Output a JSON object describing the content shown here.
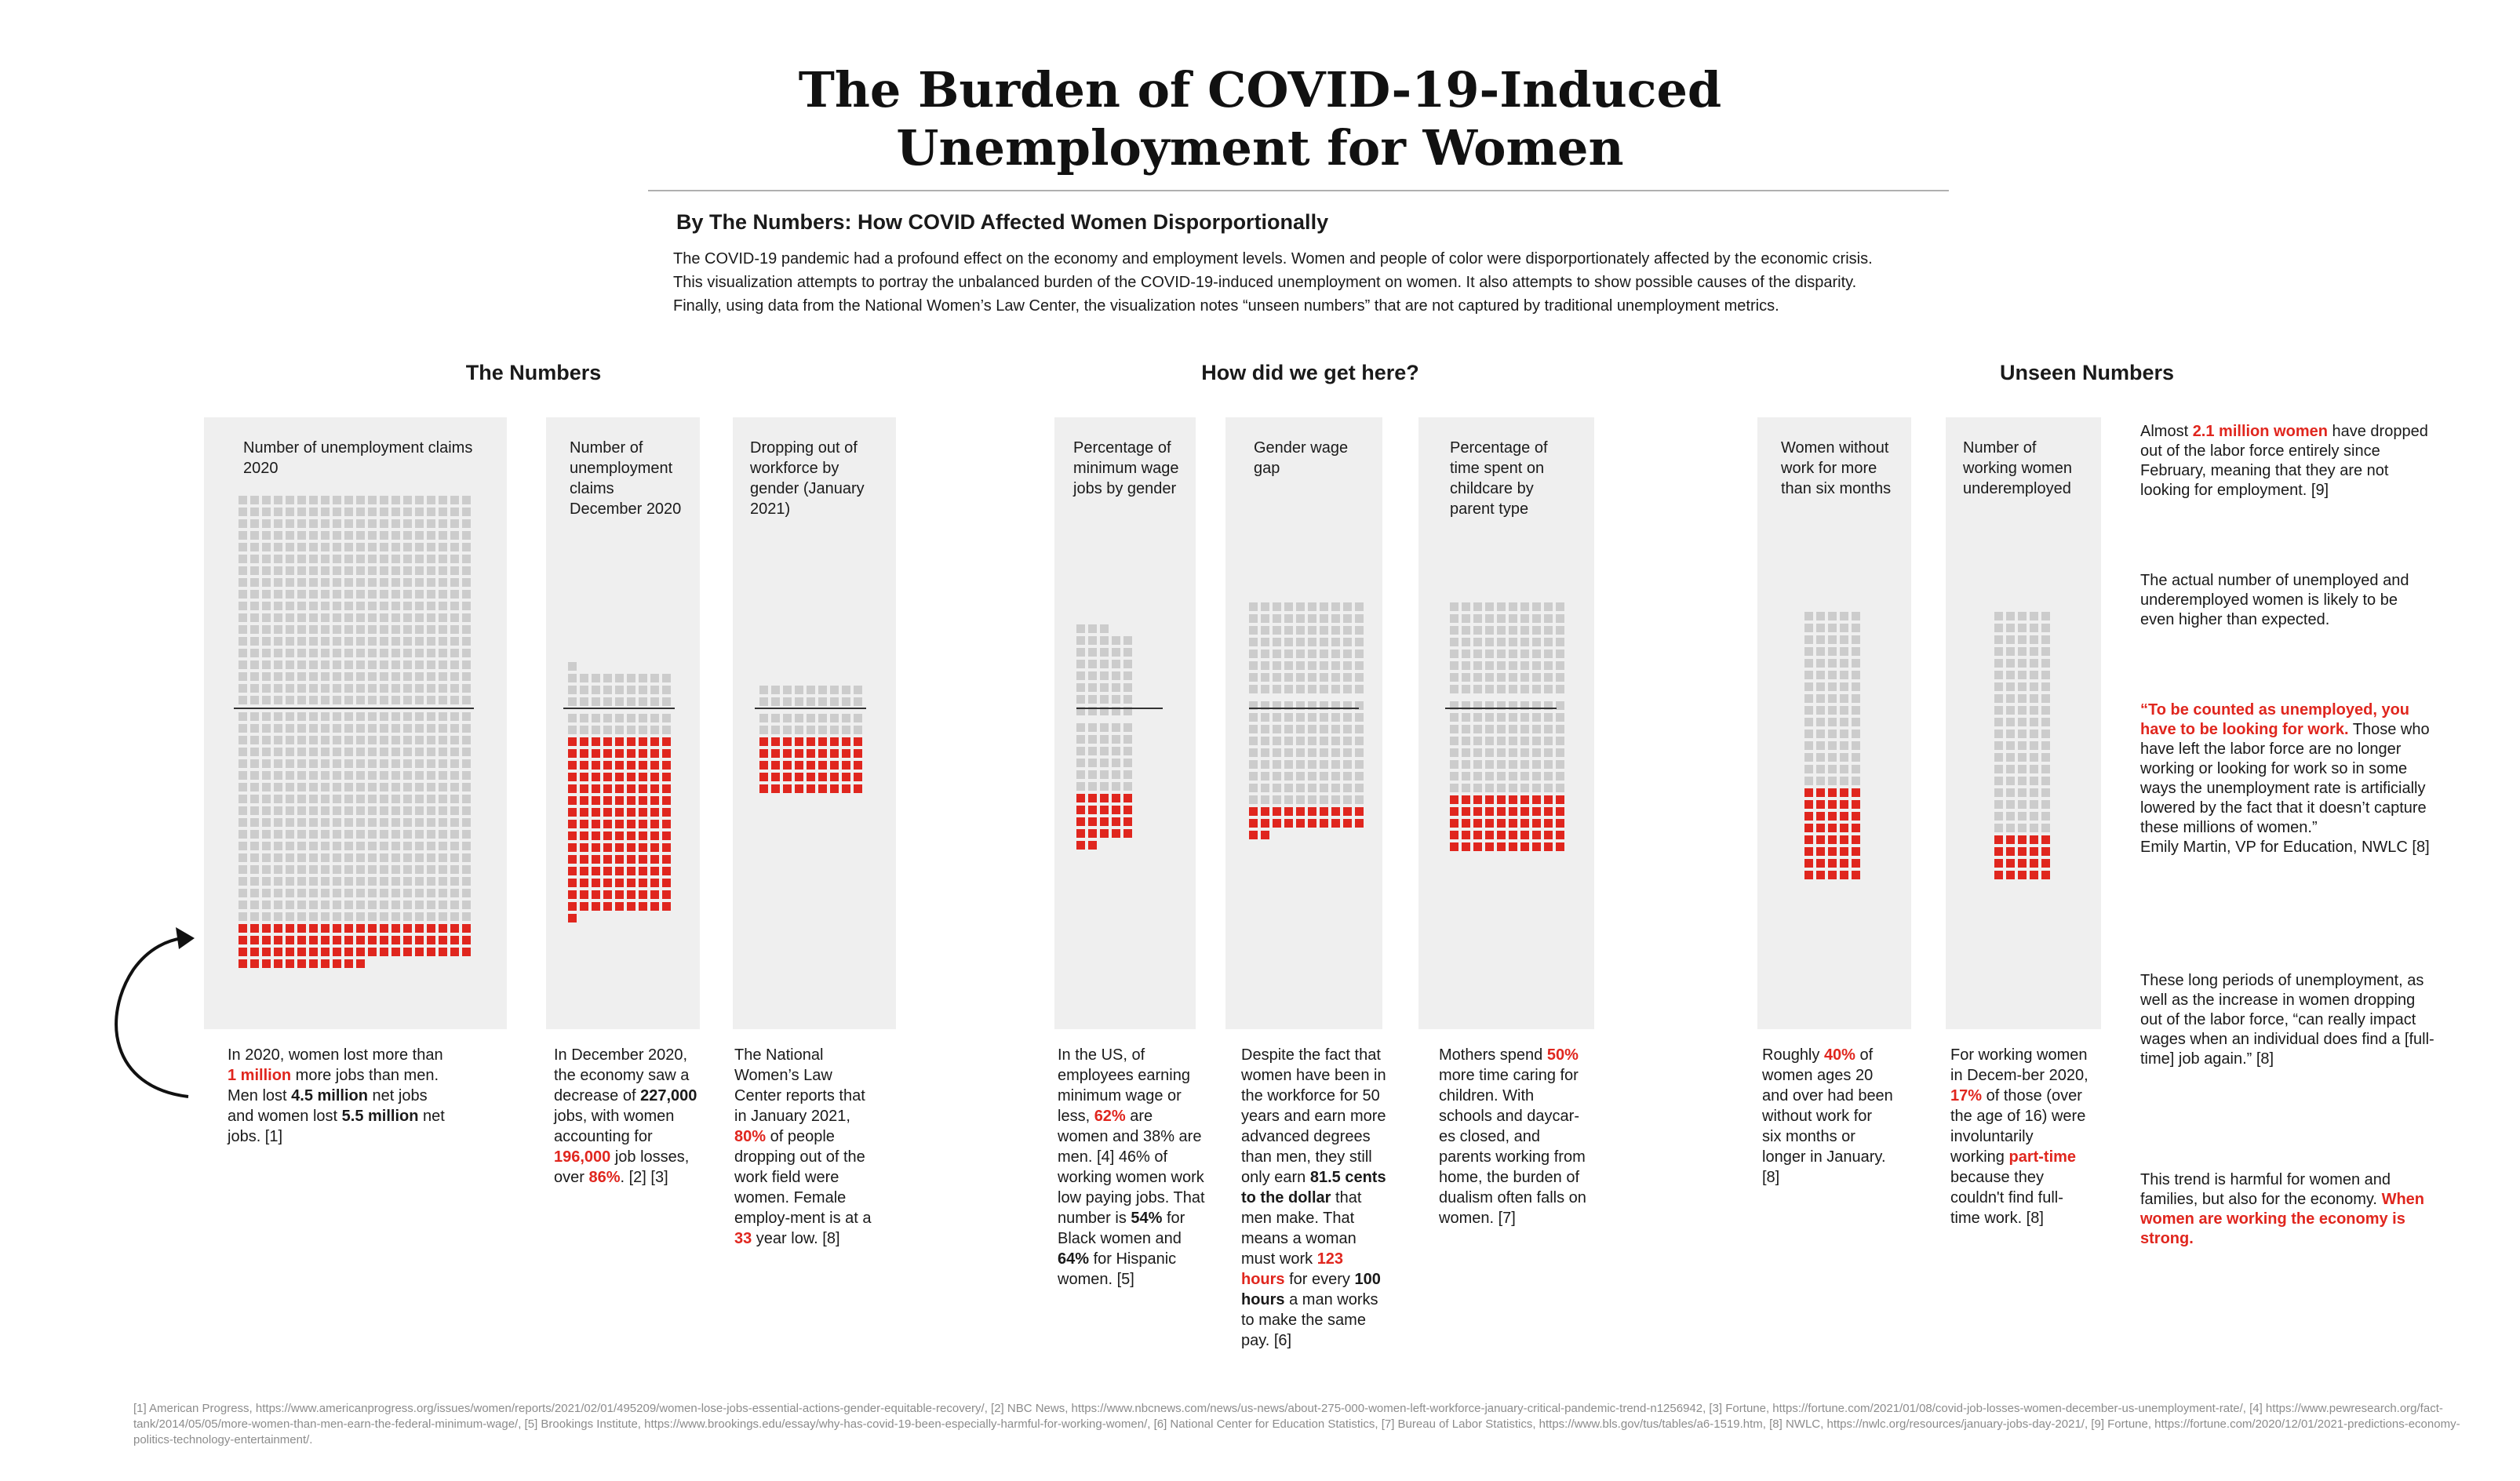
{
  "header": {
    "title_line1": "The Burden of COVID-19-Induced",
    "title_line2": "Unemployment for Women",
    "subtitle": "By The Numbers: How COVID Affected Women Disporportionally",
    "intro": "The COVID-19 pandemic had a profound effect on the economy and employment levels. Women and people of color were disporportionately affected by the economic crisis. This visualization attempts to portray the unbalanced burden of the COVID-19-induced unemployment on women. It also attempts to show possible causes of the disparity. Finally, using data from the National Women’s Law Center, the visualization notes “unseen numbers” that are not captured by traditional unemployment metrics."
  },
  "sections": {
    "numbers": "The Numbers",
    "how": "How did we get here?",
    "unseen": "Unseen Numbers"
  },
  "colors": {
    "highlight": "#e0261e",
    "neutral": "#cccccc",
    "panel": "#efefef"
  },
  "chart_data": [
    {
      "type": "waffle",
      "title": "Number of unemployment claims 2020",
      "cols": 20,
      "top_rows": 18,
      "bottom_gray_rows": 18,
      "red_full_rows": 3,
      "red_partial": 11,
      "description": "In 2020, women lost more than 1 million more jobs than men. Men lost 4.5 million net jobs and women lost 5.5 million net jobs. [1]"
    },
    {
      "type": "waffle",
      "title": "Number of unemployment claims December 2020",
      "cols": 9,
      "top_rows": 3,
      "top_partial": 1,
      "bottom_gray_rows": 2,
      "red_full_rows": 15,
      "red_partial": 1,
      "description": "In December 2020, the economy saw a decrease of 227,000 jobs, with women accounting for 196,000 job losses, over 86%. [2] [3]"
    },
    {
      "type": "waffle",
      "title": "Dropping out of workforce by gender (January 2021)",
      "cols": 9,
      "top_rows": 2,
      "bottom_gray_rows": 2,
      "red_full_rows": 5,
      "red_partial": 0,
      "description": "The National Women’s Law Center reports that in January 2021, 80% of people dropping out of the work field were women. Female employment is at a 33 year low. [8]"
    },
    {
      "type": "waffle",
      "title": "Percentage of minimum wage jobs by gender",
      "cols": 5,
      "top_rows": 7,
      "top_partial": 3,
      "bottom_gray_rows": 6,
      "red_full_rows": 4,
      "red_partial": 2,
      "description": "In the US, of employees earning minimum wage or less, 62% are women and 38% are men. [4] 46% of working women work low paying jobs. That number is 54% for Black women and 64% for Hispanic women. [5]"
    },
    {
      "type": "waffle",
      "title": "Gender wage gap",
      "cols": 10,
      "top_rows": 8,
      "bottom_gray_rows": 9,
      "red_full_rows": 2,
      "red_partial": 2,
      "description": "Despite the fact that women have been in the workforce for 50 years and earn more advanced degrees than men, they still only earn 81.5 cents to the dollar that men make. That means a woman must work 123 hours for every 100 hours a man works to make the same pay. [6]"
    },
    {
      "type": "waffle",
      "title": "Percentage of time spent on childcare by parent type",
      "cols": 10,
      "top_rows": 8,
      "bottom_gray_rows": 8,
      "red_full_rows": 5,
      "red_partial": 0,
      "description": "Mothers spend 50% more time caring for children. With schools and daycares closed, and parents working from home, the burden of dualism often falls on women. [7]"
    },
    {
      "type": "waffle",
      "title": "Women without work for more than six months",
      "cols": 5,
      "top_rows": 15,
      "red_rows": 8,
      "description": "Roughly 40% of women ages 20 and over had been without work for six months or longer in January. [8]"
    },
    {
      "type": "waffle",
      "title": "Number of working women underemployed",
      "cols": 5,
      "top_rows": 19,
      "red_rows": 4,
      "description": "For working women in December 2020, 17% of those (over the age of 16) were involuntarily working part-time because they couldn't find full-time work. [8]"
    }
  ],
  "side_notes": {
    "note1": "Almost 2.1 million women have dropped out of the labor force entirely since February, meaning that they are not looking for employment. [9]",
    "note2": "The actual number of unemployed and underemployed women is likely to be even higher than expected.",
    "note3": "“To be counted as unemployed, you have to be looking for work. Those who have left the labor force are no longer working or looking for work so in some ways the unemployment rate is artificially lowered by the fact that it doesn’t capture these millions of women.” Emily Martin, VP for Education, NWLC [8]",
    "note4": "These long periods of unemployment, as well as the increase in women dropping out of the labor force, “can really impact wages when an individual does find a [full-time] job again.” [8]",
    "note5": "This trend is harmful for women and families, but also for the economy. When women are working the economy is strong."
  },
  "footnotes": "[1] American Progress, https://www.americanprogress.org/issues/women/reports/2021/02/01/495209/women-lose-jobs-essential-actions-gender-equitable-recovery/, [2] NBC News, https://www.nbcnews.com/news/us-news/about-275-000-women-left-workforce-january-critical-pandemic-trend-n1256942, [3] Fortune, https://fortune.com/2021/01/08/covid-job-losses-women-december-us-unemployment-rate/, [4] https://www.pewresearch.org/fact-tank/2014/05/05/more-women-than-men-earn-the-federal-minimum-wage/, [5] Brookings Institute, https://www.brookings.edu/essay/why-has-covid-19-been-especially-harmful-for-working-women/, [6] National Center for Education Statistics, [7] Bureau of Labor Statistics, https://www.bls.gov/tus/tables/a6-1519.htm, [8] NWLC, https://nwlc.org/resources/january-jobs-day-2021/, [9] Fortune, https://fortune.com/2020/12/01/2021-predictions-economy-politics-technology-entertainment/."
}
